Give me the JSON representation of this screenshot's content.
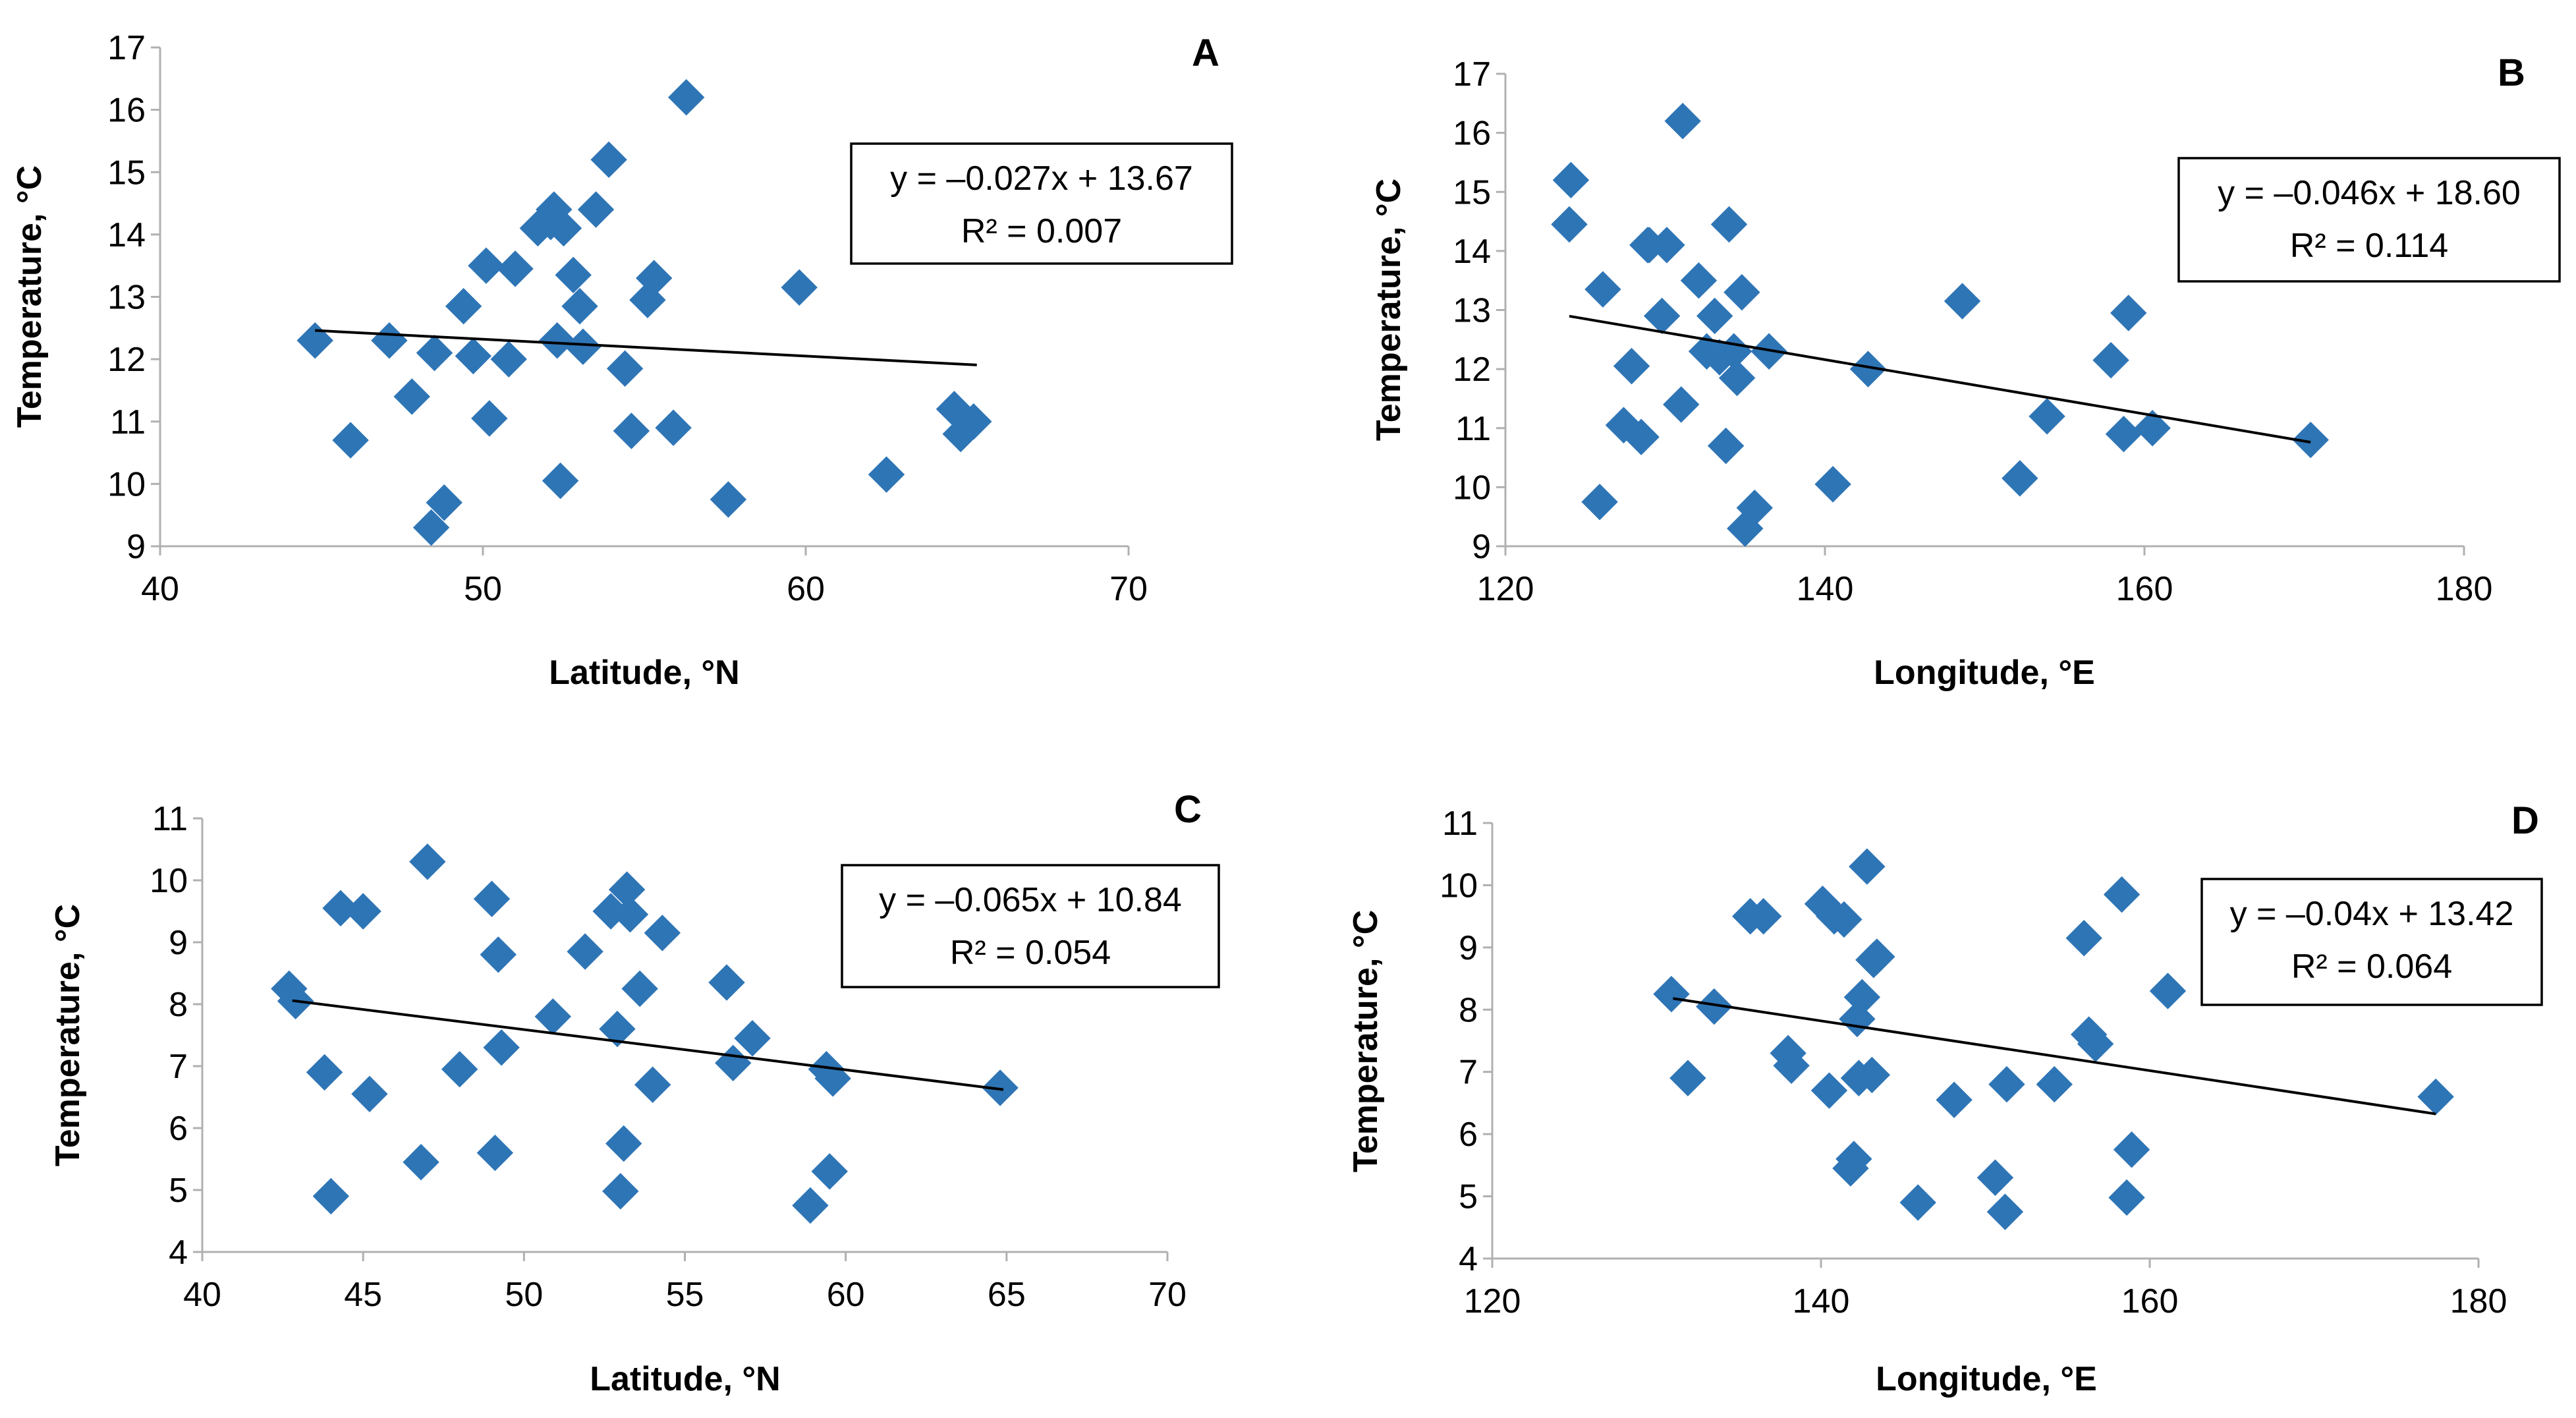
{
  "figure": {
    "background": "#ffffff",
    "marker_color": "#2e75b6",
    "trend_color": "#000000"
  },
  "chart_data": [
    {
      "id": "A",
      "type": "scatter",
      "panel_label": "A",
      "xlabel": "Latitude, °N",
      "ylabel": "Temperature, °C",
      "xlim": [
        40,
        70
      ],
      "ylim": [
        9,
        17
      ],
      "xticks": [
        40,
        50,
        60,
        70
      ],
      "yticks": [
        9,
        10,
        11,
        12,
        13,
        14,
        15,
        16,
        17
      ],
      "trendline": {
        "slope": -0.027,
        "intercept": 13.67,
        "x_range": [
          44.8,
          65.3
        ]
      },
      "equation": "y = –0.027x + 13.67",
      "r2": "R² = 0.007",
      "x": [
        44.8,
        45.9,
        47.1,
        47.8,
        48.4,
        48.5,
        48.8,
        49.4,
        49.7,
        50.1,
        50.2,
        50.8,
        51.0,
        51.7,
        52.1,
        52.2,
        52.3,
        52.4,
        52.5,
        52.8,
        53.0,
        53.1,
        53.5,
        53.9,
        54.4,
        54.6,
        55.1,
        55.3,
        55.9,
        56.3,
        57.6,
        59.8,
        62.5,
        64.6,
        64.8,
        65.2
      ],
      "y": [
        12.3,
        10.7,
        12.3,
        11.4,
        9.3,
        12.1,
        9.7,
        12.85,
        12.05,
        13.5,
        11.05,
        12.0,
        13.45,
        14.1,
        14.2,
        14.4,
        12.3,
        10.05,
        14.1,
        13.35,
        12.85,
        12.2,
        14.4,
        15.2,
        11.85,
        10.85,
        12.95,
        13.3,
        10.9,
        16.2,
        9.75,
        13.15,
        10.15,
        11.2,
        10.8,
        11.0
      ]
    },
    {
      "id": "B",
      "type": "scatter",
      "panel_label": "B",
      "xlabel": "Longitude, °E",
      "ylabel": "Temperature, °C",
      "xlim": [
        120,
        180
      ],
      "ylim": [
        9,
        17
      ],
      "xticks": [
        120,
        140,
        160,
        180
      ],
      "yticks": [
        9,
        10,
        11,
        12,
        13,
        14,
        15,
        16,
        17
      ],
      "trendline": {
        "slope": -0.046,
        "intercept": 18.6,
        "x_range": [
          124,
          170.4
        ]
      },
      "equation": "y = –0.046x + 18.60",
      "r2": "R² = 0.114",
      "x": [
        124.1,
        124.0,
        125.9,
        126.1,
        127.4,
        127.9,
        128.5,
        128.9,
        129.0,
        129.8,
        130.1,
        131.0,
        131.1,
        132.1,
        132.6,
        133.1,
        133.4,
        133.8,
        134.0,
        134.3,
        134.5,
        134.8,
        135.0,
        135.6,
        136.5,
        140.5,
        142.7,
        148.6,
        152.2,
        153.9,
        157.9,
        158.7,
        159.0,
        160.5,
        170.4
      ],
      "y": [
        15.2,
        14.45,
        9.75,
        13.35,
        11.05,
        12.05,
        10.85,
        14.1,
        14.1,
        12.9,
        14.1,
        11.4,
        16.2,
        13.5,
        12.3,
        12.9,
        12.2,
        10.7,
        14.45,
        12.3,
        11.85,
        13.3,
        9.3,
        9.65,
        12.3,
        10.05,
        12.0,
        13.15,
        10.15,
        11.2,
        12.15,
        10.9,
        12.95,
        11.0,
        10.8
      ]
    },
    {
      "id": "C",
      "type": "scatter",
      "panel_label": "C",
      "xlabel": "Latitude, °N",
      "ylabel": "Temperature, °C",
      "xlim": [
        40,
        70
      ],
      "ylim": [
        4,
        11
      ],
      "xticks": [
        40,
        45,
        50,
        55,
        60,
        65,
        70
      ],
      "yticks": [
        4,
        5,
        6,
        7,
        8,
        9,
        10,
        11
      ],
      "trendline": {
        "slope": -0.065,
        "intercept": 10.84,
        "x_range": [
          42.8,
          64.9
        ]
      },
      "equation": "y = –0.065x + 10.84",
      "r2": "R² = 0.054",
      "x": [
        42.7,
        42.9,
        43.8,
        44.0,
        44.3,
        45.0,
        45.2,
        46.8,
        47.0,
        48.0,
        49.0,
        49.1,
        49.2,
        49.3,
        50.9,
        51.9,
        52.7,
        52.9,
        53.0,
        53.1,
        53.2,
        53.3,
        53.6,
        54.0,
        54.3,
        56.3,
        56.5,
        57.1,
        58.9,
        59.4,
        59.5,
        59.6,
        64.8
      ],
      "y": [
        8.25,
        8.05,
        6.9,
        4.9,
        9.55,
        9.5,
        6.55,
        5.45,
        10.3,
        6.95,
        9.7,
        5.6,
        8.8,
        7.3,
        7.8,
        8.85,
        9.5,
        7.6,
        4.98,
        5.75,
        9.85,
        9.45,
        8.25,
        6.7,
        9.15,
        8.35,
        7.05,
        7.45,
        4.75,
        6.95,
        5.3,
        6.8,
        6.65
      ]
    },
    {
      "id": "D",
      "type": "scatter",
      "panel_label": "D",
      "xlabel": "Longitude, °E",
      "ylabel": "Temperature, °C",
      "xlim": [
        120,
        180
      ],
      "ylim": [
        4,
        11
      ],
      "xticks": [
        120,
        140,
        160,
        180
      ],
      "yticks": [
        4,
        5,
        6,
        7,
        8,
        9,
        10,
        11
      ],
      "trendline": {
        "slope": -0.04,
        "intercept": 13.42,
        "x_range": [
          131,
          177.4
        ]
      },
      "equation": "y = –0.04x + 13.42",
      "r2": "R² = 0.064",
      "x": [
        130.9,
        131.9,
        133.5,
        135.7,
        136.5,
        138.0,
        138.2,
        140.1,
        140.5,
        140.8,
        141.4,
        141.8,
        142.0,
        142.2,
        142.3,
        142.5,
        142.8,
        143.1,
        143.2,
        143.4,
        145.9,
        148.1,
        150.6,
        151.2,
        151.3,
        154.2,
        156.0,
        156.3,
        156.7,
        158.3,
        158.6,
        158.9,
        161.1,
        177.4
      ],
      "y": [
        8.25,
        6.9,
        8.05,
        9.5,
        9.5,
        7.3,
        7.1,
        9.7,
        6.7,
        9.5,
        9.45,
        5.45,
        5.6,
        7.85,
        6.9,
        8.2,
        10.3,
        6.95,
        8.8,
        8.85,
        4.9,
        6.55,
        5.3,
        4.75,
        6.8,
        6.8,
        9.15,
        7.6,
        7.45,
        9.85,
        4.98,
        5.75,
        8.3,
        6.6
      ]
    }
  ]
}
